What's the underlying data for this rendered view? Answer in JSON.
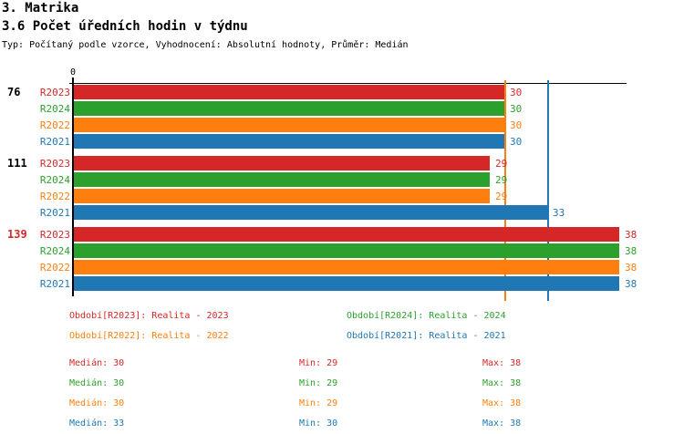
{
  "header": {
    "title1": "3. Matrika",
    "title2": "3.6 Počet úředních hodin v týdnu",
    "subtitle": "Typ: Počítaný podle vzorce, Vyhodnocení: Absolutní hodnoty, Průměr: Medián"
  },
  "colors": {
    "axis": "#000000",
    "red": "#d62728",
    "green": "#2ca02c",
    "orange": "#ff7f0e",
    "blue": "#1f77b4"
  },
  "stat_labels": {
    "median": "Medián",
    "min": "Min",
    "max": "Max"
  },
  "chart_data": {
    "type": "bar",
    "orientation": "horizontal",
    "title": "3.6 Počet úředních hodin v týdnu",
    "x_origin_label": "0",
    "x_axis_range": [
      0,
      38.5
    ],
    "grid": false,
    "series": [
      {
        "name": "R2023",
        "legend": "Období[R2023]: Realita - 2023",
        "color": "#d62728",
        "median": 30,
        "min": 29,
        "max": 38
      },
      {
        "name": "R2024",
        "legend": "Období[R2024]: Realita - 2024",
        "color": "#2ca02c",
        "median": 30,
        "min": 29,
        "max": 38
      },
      {
        "name": "R2022",
        "legend": "Období[R2022]: Realita - 2022",
        "color": "#ff7f0e",
        "median": 30,
        "min": 29,
        "max": 38
      },
      {
        "name": "R2021",
        "legend": "Období[R2021]: Realita - 2021",
        "color": "#1f77b4",
        "median": 33,
        "min": 30,
        "max": 38
      }
    ],
    "row_order_in_group": [
      "R2023",
      "R2024",
      "R2022",
      "R2021"
    ],
    "groups": [
      {
        "label": "76",
        "label_color": "#000000",
        "values": [
          30,
          30,
          30,
          30
        ]
      },
      {
        "label": "111",
        "label_color": "#000000",
        "values": [
          29,
          29,
          29,
          33
        ]
      },
      {
        "label": "139",
        "label_color": "#d62728",
        "values": [
          38,
          38,
          38,
          38
        ]
      }
    ],
    "median_lines": [
      {
        "color": "#ff7f0e",
        "value": 30
      },
      {
        "color": "#1f77b4",
        "value": 33
      }
    ]
  }
}
